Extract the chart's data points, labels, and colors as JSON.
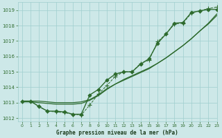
{
  "title": "Graphe pression niveau de la mer (hPa)",
  "background_color": "#cde8e8",
  "grid_color": "#9ecece",
  "line_color": "#2d6a2d",
  "xlim": [
    -0.5,
    23
  ],
  "ylim": [
    1011.8,
    1019.5
  ],
  "xticks": [
    0,
    1,
    2,
    3,
    4,
    5,
    6,
    7,
    8,
    9,
    10,
    11,
    12,
    13,
    14,
    15,
    16,
    17,
    18,
    19,
    20,
    21,
    22,
    23
  ],
  "yticks": [
    1012,
    1013,
    1014,
    1015,
    1016,
    1017,
    1018,
    1019
  ],
  "series": [
    {
      "x": [
        0,
        1,
        2,
        3,
        4,
        5,
        6,
        7,
        8,
        9,
        10,
        11,
        12,
        13,
        14,
        15,
        16,
        17,
        18,
        19,
        20,
        21,
        22,
        23
      ],
      "y": [
        1013.1,
        1013.1,
        1012.75,
        1012.45,
        1012.45,
        1012.4,
        1012.25,
        1012.25,
        1013.5,
        1013.85,
        1014.45,
        1014.85,
        1015.0,
        1015.0,
        1015.5,
        1015.85,
        1016.85,
        1017.45,
        1018.15,
        1018.2,
        1018.85,
        1018.95,
        1019.05,
        1019.05
      ],
      "marker": "D",
      "markersize": 2.5,
      "linestyle": "-",
      "linewidth": 1.0
    },
    {
      "x": [
        0,
        1,
        2,
        3,
        4,
        5,
        6,
        7,
        8,
        9,
        10,
        11,
        12,
        13,
        14,
        15,
        16,
        17,
        18,
        19,
        20,
        21,
        22,
        23
      ],
      "y": [
        1013.1,
        1013.1,
        1013.1,
        1013.05,
        1013.0,
        1013.0,
        1013.0,
        1013.05,
        1013.2,
        1013.5,
        1013.9,
        1014.2,
        1014.5,
        1014.75,
        1015.0,
        1015.25,
        1015.55,
        1015.9,
        1016.3,
        1016.7,
        1017.15,
        1017.65,
        1018.15,
        1018.75
      ],
      "marker": null,
      "linestyle": "-",
      "linewidth": 0.9
    },
    {
      "x": [
        0,
        1,
        2,
        3,
        4,
        5,
        6,
        7,
        8,
        9,
        10,
        11,
        12,
        13,
        14,
        15,
        16,
        17,
        18,
        19,
        20,
        21,
        22,
        23
      ],
      "y": [
        1013.05,
        1013.05,
        1013.0,
        1012.95,
        1012.9,
        1012.9,
        1012.9,
        1012.95,
        1013.15,
        1013.45,
        1013.85,
        1014.2,
        1014.45,
        1014.7,
        1014.95,
        1015.2,
        1015.55,
        1015.9,
        1016.3,
        1016.7,
        1017.15,
        1017.65,
        1018.1,
        1018.65
      ],
      "marker": null,
      "linestyle": "-",
      "linewidth": 0.9
    },
    {
      "x": [
        0,
        1,
        2,
        3,
        4,
        5,
        6,
        7,
        8,
        9,
        10,
        11,
        12,
        13,
        14,
        15,
        16,
        17,
        18,
        19,
        20,
        21,
        22,
        23
      ],
      "y": [
        1013.1,
        1013.1,
        1012.75,
        1012.45,
        1012.4,
        1012.35,
        1012.25,
        1012.2,
        1012.85,
        1013.55,
        1014.1,
        1014.7,
        1015.0,
        1015.0,
        1015.55,
        1015.75,
        1016.95,
        1017.45,
        1018.1,
        1018.15,
        1018.8,
        1018.95,
        1019.1,
        1019.2
      ],
      "marker": "+",
      "markersize": 4.0,
      "linestyle": "--",
      "linewidth": 0.7
    }
  ]
}
